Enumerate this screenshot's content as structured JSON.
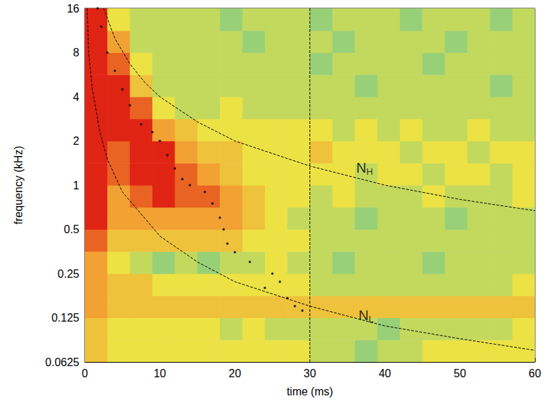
{
  "chart_data": {
    "type": "heatmap",
    "x_label": "time (ms)",
    "y_label": "frequency (kHz)",
    "xlim": [
      0,
      60
    ],
    "ylim": [
      0.0625,
      16
    ],
    "xticks": [
      0,
      10,
      20,
      30,
      40,
      50,
      60
    ],
    "yticks": [
      0.0625,
      0.125,
      0.25,
      0.5,
      1,
      2,
      4,
      8,
      16
    ],
    "log": "y",
    "grid": false,
    "heatmap": {
      "x_edges": [
        0,
        3,
        6,
        9,
        12,
        15,
        18,
        21,
        24,
        27,
        30,
        33,
        36,
        39,
        42,
        45,
        48,
        51,
        54,
        57,
        60
      ],
      "y_edges": [
        0.0625,
        0.0884,
        0.125,
        0.1768,
        0.25,
        0.3536,
        0.5,
        0.7071,
        1,
        1.414,
        2,
        2.828,
        4,
        5.657,
        8,
        11.31,
        16
      ],
      "zlim": [
        0,
        10
      ],
      "z": [
        [
          7,
          6,
          6,
          6,
          6,
          6,
          6,
          6,
          6,
          6,
          5,
          5,
          4,
          5,
          5,
          6,
          6,
          6,
          6,
          6
        ],
        [
          7,
          6,
          6,
          6,
          6,
          6,
          5,
          6,
          5,
          5,
          5,
          5,
          5,
          4,
          5,
          5,
          5,
          5,
          5,
          6
        ],
        [
          8,
          7,
          7,
          7,
          7,
          7,
          7,
          7,
          7,
          7,
          7,
          7,
          7,
          7,
          7,
          7,
          7,
          7,
          7,
          7
        ],
        [
          8,
          7,
          7,
          6,
          6,
          6,
          6,
          6,
          6,
          6,
          5,
          5,
          5,
          5,
          5,
          5,
          5,
          5,
          5,
          6
        ],
        [
          8,
          6,
          5,
          4,
          5,
          4,
          5,
          5,
          6,
          5,
          5,
          4,
          5,
          5,
          5,
          4,
          5,
          5,
          5,
          5
        ],
        [
          9,
          7,
          7,
          7,
          7,
          7,
          7,
          6,
          6,
          6,
          5,
          5,
          5,
          5,
          5,
          5,
          5,
          5,
          5,
          5
        ],
        [
          10,
          8,
          8,
          8,
          8,
          8,
          8,
          7,
          6,
          5,
          5,
          5,
          4,
          5,
          5,
          5,
          4,
          5,
          5,
          5
        ],
        [
          10,
          8,
          9,
          10,
          9,
          9,
          8,
          7,
          6,
          6,
          5,
          6,
          5,
          5,
          5,
          6,
          5,
          5,
          5,
          6
        ],
        [
          10,
          9,
          10,
          10,
          9,
          8,
          7,
          6,
          6,
          6,
          6,
          6,
          5,
          6,
          6,
          5,
          6,
          6,
          5,
          6
        ],
        [
          10,
          9,
          10,
          10,
          8,
          7,
          7,
          6,
          6,
          6,
          7,
          6,
          6,
          6,
          5,
          6,
          6,
          5,
          6,
          6
        ],
        [
          10,
          10,
          10,
          8,
          7,
          6,
          6,
          6,
          6,
          6,
          6,
          5,
          6,
          5,
          6,
          5,
          5,
          6,
          5,
          5
        ],
        [
          10,
          10,
          9,
          6,
          5,
          5,
          6,
          5,
          5,
          5,
          5,
          5,
          5,
          5,
          5,
          5,
          5,
          5,
          5,
          5
        ],
        [
          10,
          10,
          7,
          5,
          5,
          5,
          5,
          5,
          5,
          5,
          5,
          5,
          4,
          5,
          5,
          5,
          5,
          5,
          4,
          5
        ],
        [
          10,
          9,
          6,
          5,
          5,
          5,
          5,
          5,
          5,
          5,
          4,
          5,
          5,
          5,
          5,
          4,
          5,
          5,
          5,
          5
        ],
        [
          10,
          8,
          5,
          5,
          5,
          5,
          5,
          4,
          5,
          5,
          5,
          4,
          5,
          5,
          5,
          5,
          4,
          5,
          5,
          5
        ],
        [
          10,
          6,
          5,
          5,
          5,
          5,
          4,
          5,
          5,
          5,
          4,
          5,
          5,
          5,
          4,
          5,
          5,
          5,
          4,
          5
        ]
      ]
    },
    "series": [
      {
        "type": "line",
        "line_style": "dashed",
        "color": "#000000",
        "x": [
          2.5,
          4,
          6,
          8,
          10,
          15,
          20,
          30,
          40,
          50,
          60
        ],
        "y": [
          16,
          10,
          6.7,
          5,
          4,
          2.7,
          2,
          1.35,
          1,
          0.8,
          0.67
        ],
        "annotation": {
          "text": "N",
          "subscript": "H",
          "x": 37.3,
          "y": 1.32
        }
      },
      {
        "type": "line",
        "line_style": "dashed",
        "color": "#000000",
        "x": [
          0.3,
          0.5,
          1,
          2,
          3,
          5,
          10,
          15,
          20,
          30,
          40,
          50,
          60
        ],
        "y": [
          16,
          8,
          4.5,
          2.3,
          1.5,
          0.9,
          0.45,
          0.3,
          0.22,
          0.15,
          0.11,
          0.09,
          0.075
        ],
        "annotation": {
          "text": "N",
          "subscript": "L",
          "x": 37.5,
          "y": 0.13
        }
      },
      {
        "type": "line",
        "line_style": "dashed",
        "color": "#000000",
        "x": [
          30,
          30
        ],
        "y": [
          0.0625,
          16
        ]
      },
      {
        "type": "scatter",
        "marker": "circle",
        "color": "#000000",
        "x": [
          1.7,
          2.2,
          3,
          4,
          5,
          6,
          7.5,
          9,
          10,
          11,
          12,
          13,
          14,
          16,
          17,
          18,
          18.5,
          19,
          20,
          22,
          24,
          25,
          26,
          27,
          28,
          29
        ],
        "y": [
          16,
          12,
          8,
          6,
          4.5,
          3.5,
          2.6,
          2.3,
          2,
          1.6,
          1.3,
          1.1,
          1,
          0.9,
          0.75,
          0.6,
          0.5,
          0.4,
          0.35,
          0.3,
          0.2,
          0.25,
          0.22,
          0.17,
          0.15,
          0.14
        ]
      }
    ]
  }
}
